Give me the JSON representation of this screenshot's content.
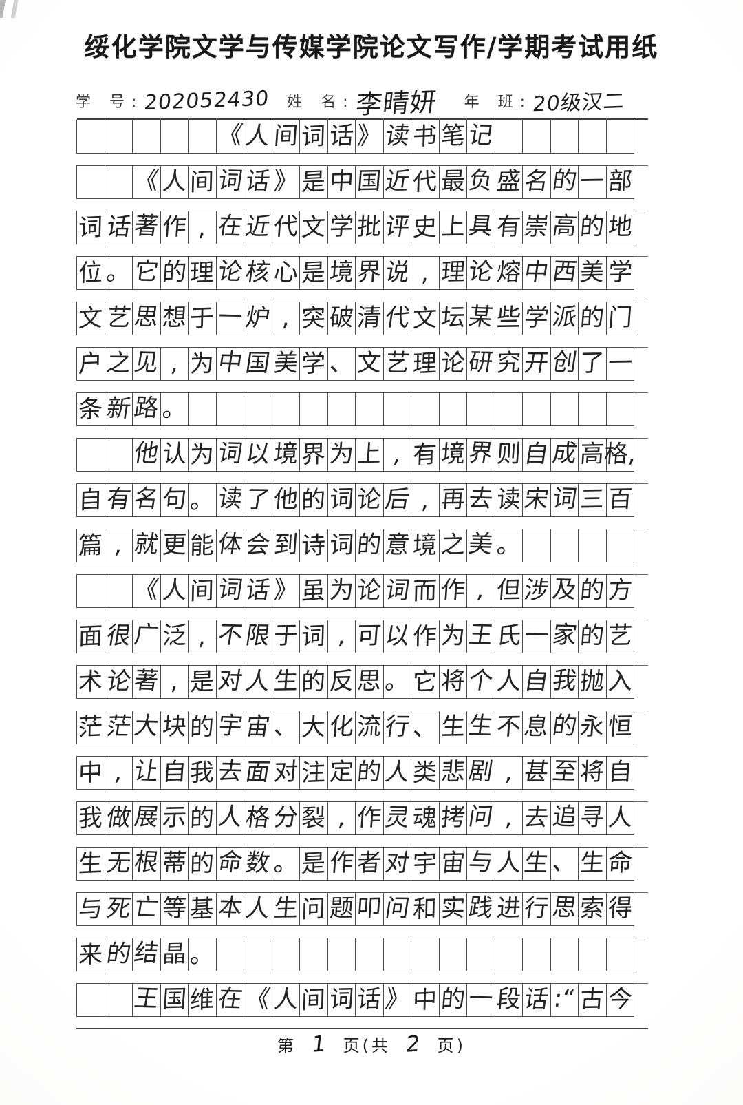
{
  "page": {
    "header_title": "绥化学院文学与传媒学院论文写作/学期考试用纸",
    "info": {
      "student_id_label": "学 号:",
      "student_id_value": "202052430",
      "name_label": "姓 名:",
      "name_value": "李晴妍",
      "class_label": "年 班:",
      "class_value": "20级汉二"
    },
    "footer": {
      "prefix": "第",
      "page_number": "1",
      "middle": "页(共",
      "total_pages": "2",
      "suffix": "页)"
    }
  },
  "sheet": {
    "columns": 20,
    "essay_title": "《人间词话》读书笔记",
    "rows": [
      {
        "indent": 5,
        "cells": [
          "《",
          "人",
          "间",
          "词",
          "话",
          "》",
          "读",
          "书",
          "笔",
          "记"
        ]
      },
      {
        "indent": 2,
        "cells": [
          "《",
          "人",
          "间",
          "词",
          "话",
          "》",
          "是",
          "中",
          "国",
          "近",
          "代",
          "最",
          "负",
          "盛",
          "名",
          "的",
          "一",
          "部"
        ]
      },
      {
        "indent": 0,
        "cells": [
          "词",
          "话",
          "著",
          "作",
          ",",
          "在",
          "近",
          "代",
          "文",
          "学",
          "批",
          "评",
          "史",
          "上",
          "具",
          "有",
          "崇",
          "高",
          "的",
          "地"
        ]
      },
      {
        "indent": 0,
        "cells": [
          "位",
          "。",
          "它",
          "的",
          "理",
          "论",
          "核",
          "心",
          "是",
          "境",
          "界",
          "说",
          ",",
          "理",
          "论",
          "熔",
          "中",
          "西",
          "美",
          "学"
        ]
      },
      {
        "indent": 0,
        "cells": [
          "文",
          "艺",
          "思",
          "想",
          "于",
          "一",
          "炉",
          ",",
          "突",
          "破",
          "清",
          "代",
          "文",
          "坛",
          "某",
          "些",
          "学",
          "派",
          "的",
          "门"
        ]
      },
      {
        "indent": 0,
        "cells": [
          "户",
          "之",
          "见",
          ",",
          "为",
          "中",
          "国",
          "美",
          "学",
          "、",
          "文",
          "艺",
          "理",
          "论",
          "研",
          "究",
          "开",
          "创",
          "了",
          "一"
        ]
      },
      {
        "indent": 0,
        "cells": [
          "条",
          "新",
          "路",
          "。"
        ]
      },
      {
        "indent": 2,
        "cells": [
          "他",
          "认",
          "为",
          "词",
          "以",
          "境",
          "界",
          "为",
          "上",
          ",",
          "有",
          "境",
          "界",
          "则",
          "自",
          "成",
          "高",
          "格,"
        ]
      },
      {
        "indent": 0,
        "cells": [
          "自",
          "有",
          "名",
          "句",
          "。",
          "读",
          "了",
          "他",
          "的",
          "词",
          "论",
          "后",
          ",",
          "再",
          "去",
          "读",
          "宋",
          "词",
          "三",
          "百"
        ]
      },
      {
        "indent": 0,
        "cells": [
          "篇",
          ",",
          "就",
          "更",
          "能",
          "体",
          "会",
          "到",
          "诗",
          "词",
          "的",
          "意",
          "境",
          "之",
          "美",
          "。"
        ]
      },
      {
        "indent": 2,
        "cells": [
          "《",
          "人",
          "间",
          "词",
          "话",
          "》",
          "虽",
          "为",
          "论",
          "词",
          "而",
          "作",
          ",",
          "但",
          "涉",
          "及",
          "的",
          "方"
        ]
      },
      {
        "indent": 0,
        "cells": [
          "面",
          "很",
          "广",
          "泛",
          ",",
          "不",
          "限",
          "于",
          "词",
          ",",
          "可",
          "以",
          "作",
          "为",
          "王",
          "氏",
          "一",
          "家",
          "的",
          "艺"
        ]
      },
      {
        "indent": 0,
        "cells": [
          "术",
          "论",
          "著",
          ",",
          "是",
          "对",
          "人",
          "生",
          "的",
          "反",
          "思",
          "。",
          "它",
          "将",
          "个",
          "人",
          "自",
          "我",
          "抛",
          "入"
        ]
      },
      {
        "indent": 0,
        "cells": [
          "茫",
          "茫",
          "大",
          "块",
          "的",
          "宇",
          "宙",
          "、",
          "大",
          "化",
          "流",
          "行",
          "、",
          "生",
          "生",
          "不",
          "息",
          "的",
          "永",
          "恒"
        ]
      },
      {
        "indent": 0,
        "cells": [
          "中",
          ",",
          "让",
          "自",
          "我",
          "去",
          "面",
          "对",
          "注",
          "定",
          "的",
          "人",
          "类",
          "悲",
          "剧",
          ",",
          "甚",
          "至",
          "将",
          "自"
        ]
      },
      {
        "indent": 0,
        "cells": [
          "我",
          "做",
          "展",
          "示",
          "的",
          "人",
          "格",
          "分",
          "裂",
          ",",
          "作",
          "灵",
          "魂",
          "拷",
          "问",
          ",",
          "去",
          "追",
          "寻",
          "人"
        ]
      },
      {
        "indent": 0,
        "cells": [
          "生",
          "无",
          "根",
          "蒂",
          "的",
          "命",
          "数",
          "。",
          "是",
          "作",
          "者",
          "对",
          "宇",
          "宙",
          "与",
          "人",
          "生",
          "、",
          "生",
          "命"
        ]
      },
      {
        "indent": 0,
        "cells": [
          "与",
          "死",
          "亡",
          "等",
          "基",
          "本",
          "人",
          "生",
          "问",
          "题",
          "叩",
          "问",
          "和",
          "实",
          "践",
          "进",
          "行",
          "思",
          "索",
          "得"
        ]
      },
      {
        "indent": 0,
        "cells": [
          "来",
          "的",
          "结",
          "晶",
          "。"
        ]
      },
      {
        "indent": 2,
        "cells": [
          "王",
          "国",
          "维",
          "在",
          "《",
          "人",
          "间",
          "词",
          "话",
          "》",
          "中",
          "的",
          "一",
          "段",
          "话",
          ":“",
          "古",
          "今"
        ]
      }
    ]
  },
  "colors": {
    "ink": "#242424",
    "grid_line": "#4c4c4c",
    "paper": "#ffffff"
  }
}
